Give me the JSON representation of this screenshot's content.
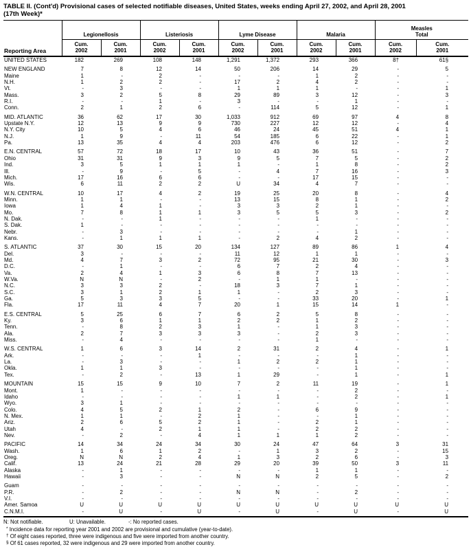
{
  "title": {
    "line1": "TABLE II. (Cont'd) Provisional cases of selected notifiable diseases, United States, weeks ending April 27, 2002, and April 28, 2001",
    "line2": "(17th Week)*"
  },
  "table": {
    "area_header": "Reporting Area",
    "groups": [
      {
        "name": "Legionellosis"
      },
      {
        "name": "Listeriosis"
      },
      {
        "name": "Lyme Disease"
      },
      {
        "name": "Malaria"
      },
      {
        "name": "Measles\nTotal"
      }
    ],
    "subheader": {
      "label": "Cum.",
      "year_2002": "2002",
      "year_2001": "2001"
    },
    "rows": [
      {
        "area": "UNITED STATES",
        "gap": false,
        "values": [
          "182",
          "269",
          "108",
          "148",
          "1,291",
          "1,372",
          "293",
          "366",
          "8†",
          "61§"
        ]
      },
      {
        "area": "NEW ENGLAND",
        "gap": true,
        "values": [
          "7",
          "8",
          "12",
          "14",
          "50",
          "206",
          "14",
          "29",
          "-",
          "5"
        ]
      },
      {
        "area": "Maine",
        "gap": false,
        "values": [
          "1",
          "-",
          "2",
          "-",
          "-",
          "-",
          "1",
          "2",
          "-",
          "-"
        ]
      },
      {
        "area": "N.H.",
        "gap": false,
        "values": [
          "1",
          "2",
          "2",
          "-",
          "17",
          "2",
          "4",
          "2",
          "-",
          "-"
        ]
      },
      {
        "area": "Vt.",
        "gap": false,
        "values": [
          "-",
          "3",
          "-",
          "-",
          "1",
          "1",
          "1",
          "-",
          "-",
          "1"
        ]
      },
      {
        "area": "Mass.",
        "gap": false,
        "values": [
          "3",
          "2",
          "5",
          "8",
          "29",
          "89",
          "3",
          "12",
          "-",
          "3"
        ]
      },
      {
        "area": "R.I.",
        "gap": false,
        "values": [
          "-",
          "-",
          "1",
          "-",
          "3",
          "-",
          "-",
          "1",
          "-",
          "-"
        ]
      },
      {
        "area": "Conn.",
        "gap": false,
        "values": [
          "2",
          "1",
          "2",
          "6",
          "-",
          "114",
          "5",
          "12",
          "-",
          "1"
        ]
      },
      {
        "area": "MID. ATLANTIC",
        "gap": true,
        "values": [
          "36",
          "62",
          "17",
          "30",
          "1,033",
          "912",
          "69",
          "97",
          "4",
          "8"
        ]
      },
      {
        "area": "Upstate N.Y.",
        "gap": false,
        "values": [
          "12",
          "13",
          "9",
          "9",
          "730",
          "227",
          "12",
          "12",
          "-",
          "4"
        ]
      },
      {
        "area": "N.Y. City",
        "gap": false,
        "values": [
          "10",
          "5",
          "4",
          "6",
          "46",
          "24",
          "45",
          "51",
          "4",
          "1"
        ]
      },
      {
        "area": "N.J.",
        "gap": false,
        "values": [
          "1",
          "9",
          "-",
          "11",
          "54",
          "185",
          "6",
          "22",
          "-",
          "1"
        ]
      },
      {
        "area": "Pa.",
        "gap": false,
        "values": [
          "13",
          "35",
          "4",
          "4",
          "203",
          "476",
          "6",
          "12",
          "-",
          "2"
        ]
      },
      {
        "area": "E.N. CENTRAL",
        "gap": true,
        "values": [
          "57",
          "72",
          "18",
          "17",
          "10",
          "43",
          "36",
          "51",
          "-",
          "7"
        ]
      },
      {
        "area": "Ohio",
        "gap": false,
        "values": [
          "31",
          "31",
          "9",
          "3",
          "9",
          "5",
          "7",
          "5",
          "-",
          "2"
        ]
      },
      {
        "area": "Ind.",
        "gap": false,
        "values": [
          "3",
          "5",
          "1",
          "1",
          "1",
          "-",
          "1",
          "8",
          "-",
          "2"
        ]
      },
      {
        "area": "Ill.",
        "gap": false,
        "values": [
          "-",
          "9",
          "-",
          "5",
          "-",
          "4",
          "7",
          "16",
          "-",
          "3"
        ]
      },
      {
        "area": "Mich.",
        "gap": false,
        "values": [
          "17",
          "16",
          "6",
          "6",
          "-",
          "-",
          "17",
          "15",
          "-",
          "-"
        ]
      },
      {
        "area": "Wis.",
        "gap": false,
        "values": [
          "6",
          "11",
          "2",
          "2",
          "U",
          "34",
          "4",
          "7",
          "-",
          "-"
        ]
      },
      {
        "area": "W.N. CENTRAL",
        "gap": true,
        "values": [
          "10",
          "17",
          "4",
          "2",
          "19",
          "25",
          "20",
          "8",
          "-",
          "4"
        ]
      },
      {
        "area": "Minn.",
        "gap": false,
        "values": [
          "1",
          "1",
          "-",
          "-",
          "13",
          "15",
          "8",
          "1",
          "-",
          "2"
        ]
      },
      {
        "area": "Iowa",
        "gap": false,
        "values": [
          "1",
          "4",
          "1",
          "-",
          "3",
          "3",
          "2",
          "1",
          "-",
          "-"
        ]
      },
      {
        "area": "Mo.",
        "gap": false,
        "values": [
          "7",
          "8",
          "1",
          "1",
          "3",
          "5",
          "5",
          "3",
          "-",
          "2"
        ]
      },
      {
        "area": "N. Dak.",
        "gap": false,
        "values": [
          "-",
          "-",
          "1",
          "-",
          "-",
          "-",
          "1",
          "-",
          "-",
          "-"
        ]
      },
      {
        "area": "S. Dak.",
        "gap": false,
        "values": [
          "1",
          "-",
          "-",
          "-",
          "-",
          "-",
          "-",
          "-",
          "-",
          "-"
        ]
      },
      {
        "area": "Nebr.",
        "gap": false,
        "values": [
          "-",
          "3",
          "-",
          "-",
          "-",
          "-",
          "-",
          "1",
          "-",
          "-"
        ]
      },
      {
        "area": "Kans.",
        "gap": false,
        "values": [
          "-",
          "1",
          "1",
          "1",
          "-",
          "2",
          "4",
          "2",
          "-",
          "-"
        ]
      },
      {
        "area": "S. ATLANTIC",
        "gap": true,
        "values": [
          "37",
          "30",
          "15",
          "20",
          "134",
          "127",
          "89",
          "86",
          "1",
          "4"
        ]
      },
      {
        "area": "Del.",
        "gap": false,
        "values": [
          "3",
          "-",
          "-",
          "-",
          "11",
          "12",
          "1",
          "1",
          "-",
          "-"
        ]
      },
      {
        "area": "Md.",
        "gap": false,
        "values": [
          "4",
          "7",
          "3",
          "2",
          "72",
          "95",
          "21",
          "30",
          "-",
          "3"
        ]
      },
      {
        "area": "D.C.",
        "gap": false,
        "values": [
          "-",
          "1",
          "-",
          "-",
          "6",
          "7",
          "2",
          "4",
          "-",
          "-"
        ]
      },
      {
        "area": "Va.",
        "gap": false,
        "values": [
          "2",
          "4",
          "1",
          "3",
          "6",
          "8",
          "7",
          "13",
          "-",
          "-"
        ]
      },
      {
        "area": "W.Va.",
        "gap": false,
        "values": [
          "N",
          "N",
          "-",
          "2",
          "-",
          "1",
          "1",
          "-",
          "-",
          "-"
        ]
      },
      {
        "area": "N.C.",
        "gap": false,
        "values": [
          "3",
          "3",
          "2",
          "-",
          "18",
          "3",
          "7",
          "1",
          "-",
          "-"
        ]
      },
      {
        "area": "S.C.",
        "gap": false,
        "values": [
          "3",
          "1",
          "2",
          "1",
          "1",
          "-",
          "2",
          "3",
          "-",
          "-"
        ]
      },
      {
        "area": "Ga.",
        "gap": false,
        "values": [
          "5",
          "3",
          "3",
          "5",
          "-",
          "-",
          "33",
          "20",
          "-",
          "1"
        ]
      },
      {
        "area": "Fla.",
        "gap": false,
        "values": [
          "17",
          "11",
          "4",
          "7",
          "20",
          "1",
          "15",
          "14",
          "1",
          "-"
        ]
      },
      {
        "area": "E.S. CENTRAL",
        "gap": true,
        "values": [
          "5",
          "25",
          "6",
          "7",
          "6",
          "2",
          "5",
          "8",
          "-",
          "-"
        ]
      },
      {
        "area": "Ky.",
        "gap": false,
        "values": [
          "3",
          "6",
          "1",
          "1",
          "2",
          "2",
          "1",
          "2",
          "-",
          "-"
        ]
      },
      {
        "area": "Tenn.",
        "gap": false,
        "values": [
          "-",
          "8",
          "2",
          "3",
          "1",
          "-",
          "1",
          "3",
          "-",
          "-"
        ]
      },
      {
        "area": "Ala.",
        "gap": false,
        "values": [
          "2",
          "7",
          "3",
          "3",
          "3",
          "-",
          "2",
          "3",
          "-",
          "-"
        ]
      },
      {
        "area": "Miss.",
        "gap": false,
        "values": [
          "-",
          "4",
          "-",
          "-",
          "-",
          "-",
          "1",
          "-",
          "-",
          "-"
        ]
      },
      {
        "area": "W.S. CENTRAL",
        "gap": true,
        "values": [
          "1",
          "6",
          "3",
          "14",
          "2",
          "31",
          "2",
          "4",
          "-",
          "1"
        ]
      },
      {
        "area": "Ark.",
        "gap": false,
        "values": [
          "-",
          "-",
          "-",
          "1",
          "-",
          "-",
          "-",
          "1",
          "-",
          "-"
        ]
      },
      {
        "area": "La.",
        "gap": false,
        "values": [
          "-",
          "3",
          "-",
          "-",
          "1",
          "2",
          "2",
          "1",
          "-",
          "-"
        ]
      },
      {
        "area": "Okla.",
        "gap": false,
        "values": [
          "1",
          "1",
          "3",
          "-",
          "-",
          "-",
          "-",
          "1",
          "-",
          "-"
        ]
      },
      {
        "area": "Tex.",
        "gap": false,
        "values": [
          "-",
          "2",
          "-",
          "13",
          "1",
          "29",
          "-",
          "1",
          "-",
          "1"
        ]
      },
      {
        "area": "MOUNTAIN",
        "gap": true,
        "values": [
          "15",
          "15",
          "9",
          "10",
          "7",
          "2",
          "11",
          "19",
          "-",
          "1"
        ]
      },
      {
        "area": "Mont.",
        "gap": false,
        "values": [
          "1",
          "-",
          "-",
          "-",
          "-",
          "-",
          "-",
          "2",
          "-",
          "-"
        ]
      },
      {
        "area": "Idaho",
        "gap": false,
        "values": [
          "-",
          "-",
          "-",
          "-",
          "1",
          "1",
          "-",
          "2",
          "-",
          "1"
        ]
      },
      {
        "area": "Wyo.",
        "gap": false,
        "values": [
          "3",
          "1",
          "-",
          "-",
          "-",
          "-",
          "-",
          "-",
          "-",
          "-"
        ]
      },
      {
        "area": "Colo.",
        "gap": false,
        "values": [
          "4",
          "5",
          "2",
          "1",
          "2",
          "-",
          "6",
          "9",
          "-",
          "-"
        ]
      },
      {
        "area": "N. Mex.",
        "gap": false,
        "values": [
          "1",
          "1",
          "-",
          "2",
          "1",
          "-",
          "-",
          "1",
          "-",
          "-"
        ]
      },
      {
        "area": "Ariz.",
        "gap": false,
        "values": [
          "2",
          "6",
          "5",
          "2",
          "1",
          "-",
          "2",
          "1",
          "-",
          "-"
        ]
      },
      {
        "area": "Utah",
        "gap": false,
        "values": [
          "4",
          "-",
          "2",
          "1",
          "1",
          "-",
          "2",
          "2",
          "-",
          "-"
        ]
      },
      {
        "area": "Nev.",
        "gap": false,
        "values": [
          "-",
          "2",
          "-",
          "4",
          "1",
          "1",
          "1",
          "2",
          "-",
          "-"
        ]
      },
      {
        "area": "PACIFIC",
        "gap": true,
        "values": [
          "14",
          "34",
          "24",
          "34",
          "30",
          "24",
          "47",
          "64",
          "3",
          "31"
        ]
      },
      {
        "area": "Wash.",
        "gap": false,
        "values": [
          "1",
          "6",
          "1",
          "2",
          "-",
          "1",
          "3",
          "2",
          "-",
          "15"
        ]
      },
      {
        "area": "Oreg.",
        "gap": false,
        "values": [
          "N",
          "N",
          "2",
          "4",
          "1",
          "3",
          "2",
          "6",
          "-",
          "3"
        ]
      },
      {
        "area": "Calif.",
        "gap": false,
        "values": [
          "13",
          "24",
          "21",
          "28",
          "29",
          "20",
          "39",
          "50",
          "3",
          "11"
        ]
      },
      {
        "area": "Alaska",
        "gap": false,
        "values": [
          "-",
          "1",
          "-",
          "-",
          "-",
          "-",
          "1",
          "1",
          "-",
          "-"
        ]
      },
      {
        "area": "Hawaii",
        "gap": false,
        "values": [
          "-",
          "3",
          "-",
          "-",
          "N",
          "N",
          "2",
          "5",
          "-",
          "2"
        ]
      },
      {
        "area": "Guam",
        "gap": true,
        "values": [
          "-",
          "-",
          "-",
          "-",
          "-",
          "-",
          "-",
          "-",
          "-",
          "-"
        ]
      },
      {
        "area": "P.R.",
        "gap": false,
        "values": [
          "-",
          "2",
          "-",
          "-",
          "N",
          "N",
          "-",
          "2",
          "-",
          "-"
        ]
      },
      {
        "area": "V.I.",
        "gap": false,
        "values": [
          "-",
          "-",
          "-",
          "-",
          "-",
          "-",
          "-",
          "-",
          "-",
          "-"
        ]
      },
      {
        "area": "Amer. Samoa",
        "gap": false,
        "values": [
          "U",
          "U",
          "U",
          "U",
          "U",
          "U",
          "U",
          "U",
          "U",
          "U"
        ]
      },
      {
        "area": "C.N.M.I.",
        "gap": false,
        "values": [
          "-",
          "U",
          "-",
          "U",
          "-",
          "U",
          "-",
          "U",
          "-",
          "U"
        ]
      }
    ]
  },
  "legend": [
    "N: Not notifiable.",
    "U: Unavailable.",
    "-: No reported cases."
  ],
  "footnotes": [
    {
      "marker": "*",
      "text": "Incidence data for reporting year 2001 and 2002 are provisional and cumulative (year-to-date)."
    },
    {
      "marker": "†",
      "text": "Of eight cases reported, three were indigenous and five were imported from another country."
    },
    {
      "marker": "§",
      "text": "Of 61 cases reported, 32 were indigenous and 29 were imported from another country."
    }
  ]
}
